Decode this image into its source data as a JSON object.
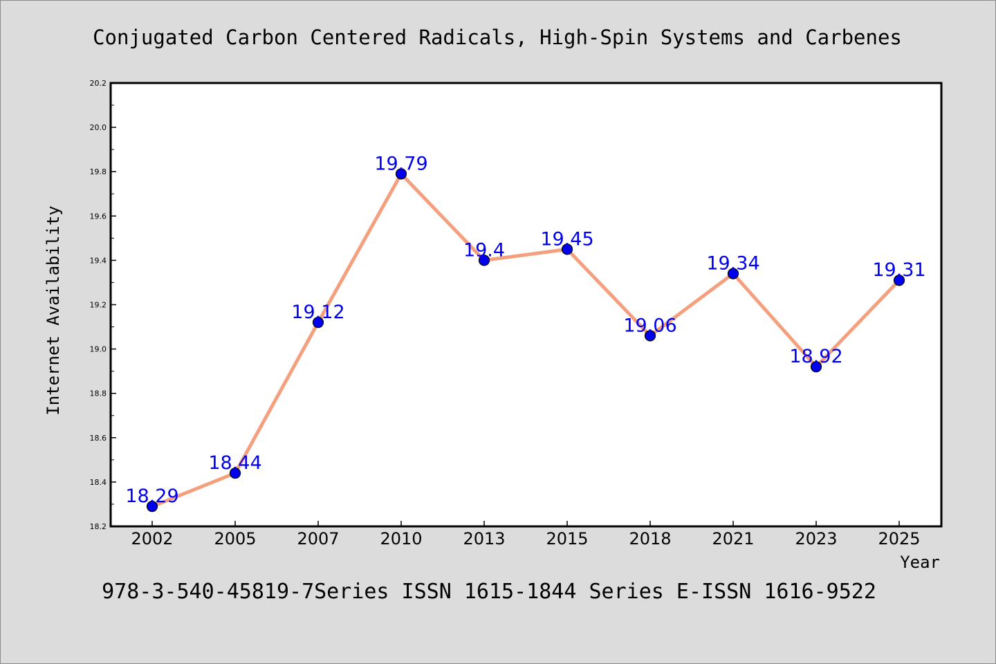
{
  "chart_data": {
    "type": "line",
    "title": "Conjugated Carbon Centered Radicals, High-Spin Systems and Carbenes",
    "xlabel": "Year",
    "ylabel": "Internet Availability",
    "categories": [
      "2002",
      "2005",
      "2007",
      "2010",
      "2013",
      "2015",
      "2018",
      "2021",
      "2023",
      "2025"
    ],
    "series": [
      {
        "values": [
          18.29,
          18.44,
          19.12,
          19.79,
          19.4,
          19.45,
          19.06,
          19.34,
          18.92,
          19.31
        ],
        "data_labels": [
          "18.29",
          "18.44",
          "19.12",
          "19.79",
          "19.4",
          "19.45",
          "19.06",
          "19.34",
          "18.92",
          "19.31"
        ]
      }
    ],
    "ylim": [
      18.2,
      20.2
    ],
    "yticks": [
      "18.2",
      "18.4",
      "18.6",
      "18.8",
      "19.0",
      "19.2",
      "19.4",
      "19.6",
      "19.8",
      "20.0",
      "20.2"
    ],
    "grid": false,
    "legend": "none",
    "colors": {
      "line": "#f4a07f",
      "marker": "#0000ee",
      "data_label": "#0000ee",
      "plot_background": "#ffffff",
      "page_background": "#dcdcdc"
    }
  },
  "footer_text": "978-3-540-45819-7Series ISSN 1615-1844 Series E-ISSN 1616-9522"
}
